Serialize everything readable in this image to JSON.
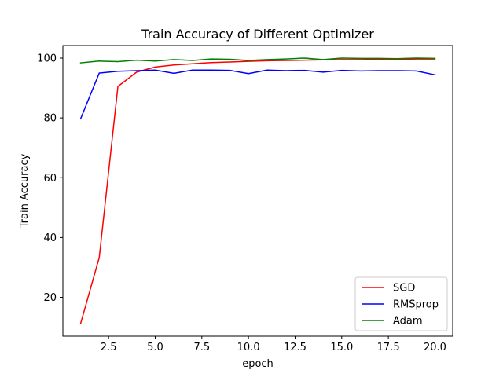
{
  "chart_data": {
    "type": "line",
    "title": "Train Accuracy of Different Optimizer",
    "xlabel": "epoch",
    "ylabel": "Train Accuracy",
    "xlim": [
      0.05,
      20.95
    ],
    "ylim": [
      7.0,
      104.2
    ],
    "xticks": [
      2.5,
      5.0,
      7.5,
      10.0,
      12.5,
      15.0,
      17.5,
      20.0
    ],
    "xtick_labels": [
      "2.5",
      "5.0",
      "7.5",
      "10.0",
      "12.5",
      "15.0",
      "17.5",
      "20.0"
    ],
    "yticks": [
      20,
      40,
      60,
      80,
      100
    ],
    "ytick_labels": [
      "20",
      "40",
      "60",
      "80",
      "100"
    ],
    "grid": false,
    "legend_position": "lower-right",
    "x": [
      1,
      2,
      3,
      4,
      5,
      6,
      7,
      8,
      9,
      10,
      11,
      12,
      13,
      14,
      15,
      16,
      17,
      18,
      19,
      20
    ],
    "series": [
      {
        "name": "SGD",
        "color": "#ff0000",
        "values": [
          11.2,
          33.3,
          90.5,
          95.3,
          97.0,
          97.7,
          98.1,
          98.5,
          98.7,
          98.9,
          99.1,
          99.2,
          99.3,
          99.4,
          99.5,
          99.5,
          99.6,
          99.6,
          99.7,
          99.7
        ]
      },
      {
        "name": "RMSprop",
        "color": "#0000ff",
        "values": [
          79.7,
          95.0,
          95.6,
          95.8,
          96.0,
          94.9,
          96.0,
          96.0,
          95.9,
          94.8,
          96.0,
          95.8,
          95.9,
          95.3,
          95.9,
          95.7,
          95.8,
          95.8,
          95.7,
          94.4
        ]
      },
      {
        "name": "Adam",
        "color": "#008000",
        "values": [
          98.4,
          99.0,
          98.8,
          99.3,
          99.0,
          99.5,
          99.2,
          99.7,
          99.6,
          99.2,
          99.5,
          99.7,
          100.0,
          99.5,
          100.0,
          99.9,
          99.9,
          99.8,
          100.0,
          99.9
        ]
      }
    ]
  }
}
